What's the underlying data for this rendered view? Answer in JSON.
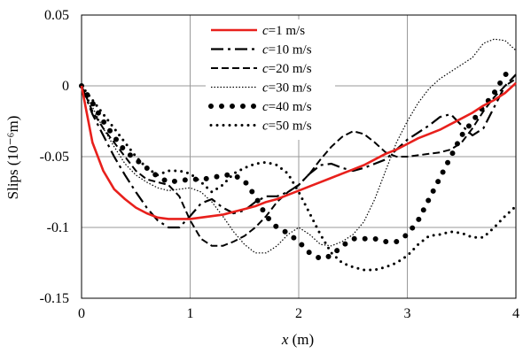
{
  "chart_data": {
    "type": "line",
    "xlabel_var": "x",
    "xlabel_unit": " (m)",
    "ylabel": "Slips (10⁻⁶m)",
    "xlim": [
      0,
      4
    ],
    "ylim": [
      -0.15,
      0.05
    ],
    "xticks": [
      "0",
      "1",
      "2",
      "3",
      "4"
    ],
    "yticks": [
      "0.05",
      "0",
      "-0.05",
      "-0.1",
      "-0.15"
    ],
    "grid": true,
    "legend_position": "top-center",
    "series": [
      {
        "name_var": "c",
        "name_rest": "=1 m/s",
        "color": "#e8201c",
        "style": "solid",
        "x": [
          0,
          0.1,
          0.2,
          0.3,
          0.4,
          0.5,
          0.6,
          0.7,
          0.8,
          0.9,
          1.0,
          1.1,
          1.2,
          1.3,
          1.4,
          1.5,
          1.6,
          1.7,
          1.8,
          1.9,
          2.0,
          2.1,
          2.2,
          2.3,
          2.4,
          2.5,
          2.6,
          2.7,
          2.8,
          2.9,
          3.0,
          3.1,
          3.2,
          3.3,
          3.4,
          3.5,
          3.6,
          3.7,
          3.8,
          3.9,
          4.0
        ],
        "y": [
          0,
          -0.04,
          -0.06,
          -0.073,
          -0.08,
          -0.086,
          -0.09,
          -0.093,
          -0.094,
          -0.094,
          -0.094,
          -0.093,
          -0.092,
          -0.091,
          -0.089,
          -0.087,
          -0.085,
          -0.082,
          -0.08,
          -0.077,
          -0.074,
          -0.071,
          -0.068,
          -0.065,
          -0.062,
          -0.059,
          -0.056,
          -0.052,
          -0.048,
          -0.045,
          -0.041,
          -0.037,
          -0.034,
          -0.031,
          -0.027,
          -0.023,
          -0.019,
          -0.014,
          -0.01,
          -0.005,
          0.002
        ]
      },
      {
        "name_var": "c",
        "name_rest": "=10 m/s",
        "color": "#000000",
        "style": "longdashdot",
        "x": [
          0,
          0.1,
          0.2,
          0.3,
          0.4,
          0.5,
          0.6,
          0.7,
          0.8,
          0.9,
          1.0,
          1.1,
          1.2,
          1.3,
          1.4,
          1.5,
          1.6,
          1.7,
          1.8,
          1.9,
          2.0,
          2.1,
          2.2,
          2.3,
          2.4,
          2.5,
          2.6,
          2.7,
          2.8,
          2.9,
          3.0,
          3.1,
          3.2,
          3.3,
          3.4,
          3.5,
          3.6,
          3.7,
          3.8,
          3.9,
          4.0
        ],
        "y": [
          0,
          -0.02,
          -0.035,
          -0.05,
          -0.063,
          -0.075,
          -0.086,
          -0.095,
          -0.1,
          -0.1,
          -0.092,
          -0.083,
          -0.08,
          -0.086,
          -0.09,
          -0.088,
          -0.082,
          -0.078,
          -0.078,
          -0.075,
          -0.07,
          -0.062,
          -0.056,
          -0.055,
          -0.058,
          -0.06,
          -0.058,
          -0.055,
          -0.052,
          -0.045,
          -0.038,
          -0.033,
          -0.028,
          -0.022,
          -0.02,
          -0.028,
          -0.035,
          -0.03,
          -0.015,
          0.0,
          0.008
        ]
      },
      {
        "name_var": "c",
        "name_rest": "=20 m/s",
        "color": "#000000",
        "style": "dashed",
        "x": [
          0,
          0.1,
          0.2,
          0.3,
          0.4,
          0.5,
          0.6,
          0.7,
          0.8,
          0.9,
          1.0,
          1.1,
          1.2,
          1.3,
          1.4,
          1.5,
          1.6,
          1.7,
          1.8,
          1.9,
          2.0,
          2.1,
          2.2,
          2.3,
          2.4,
          2.5,
          2.6,
          2.7,
          2.8,
          2.9,
          3.0,
          3.1,
          3.2,
          3.3,
          3.4,
          3.5,
          3.6,
          3.7,
          3.8,
          3.9,
          4.0
        ],
        "y": [
          0,
          -0.018,
          -0.03,
          -0.04,
          -0.05,
          -0.06,
          -0.066,
          -0.068,
          -0.07,
          -0.078,
          -0.095,
          -0.108,
          -0.113,
          -0.113,
          -0.11,
          -0.106,
          -0.1,
          -0.092,
          -0.082,
          -0.075,
          -0.07,
          -0.062,
          -0.052,
          -0.043,
          -0.036,
          -0.032,
          -0.034,
          -0.04,
          -0.047,
          -0.05,
          -0.05,
          -0.049,
          -0.048,
          -0.047,
          -0.045,
          -0.04,
          -0.03,
          -0.018,
          -0.008,
          0.0,
          0.005
        ]
      },
      {
        "name_var": "c",
        "name_rest": "=30 m/s",
        "color": "#000000",
        "style": "dotted",
        "x": [
          0,
          0.1,
          0.2,
          0.3,
          0.4,
          0.5,
          0.6,
          0.7,
          0.8,
          0.9,
          1.0,
          1.1,
          1.2,
          1.3,
          1.4,
          1.5,
          1.6,
          1.7,
          1.8,
          1.9,
          2.0,
          2.1,
          2.2,
          2.3,
          2.4,
          2.5,
          2.6,
          2.7,
          2.8,
          2.9,
          3.0,
          3.1,
          3.2,
          3.3,
          3.4,
          3.5,
          3.6,
          3.7,
          3.8,
          3.9,
          4.0
        ],
        "y": [
          0,
          -0.015,
          -0.03,
          -0.043,
          -0.055,
          -0.063,
          -0.068,
          -0.072,
          -0.074,
          -0.073,
          -0.072,
          -0.075,
          -0.082,
          -0.092,
          -0.103,
          -0.112,
          -0.118,
          -0.118,
          -0.113,
          -0.105,
          -0.1,
          -0.105,
          -0.112,
          -0.113,
          -0.11,
          -0.105,
          -0.096,
          -0.08,
          -0.06,
          -0.04,
          -0.025,
          -0.012,
          -0.002,
          0.005,
          0.01,
          0.015,
          0.02,
          0.03,
          0.033,
          0.032,
          0.025
        ]
      },
      {
        "name_var": "c",
        "name_rest": "=40 m/s",
        "color": "#000000",
        "style": "bigdots",
        "x": [
          0,
          0.1,
          0.2,
          0.3,
          0.4,
          0.5,
          0.6,
          0.7,
          0.8,
          0.9,
          1.0,
          1.1,
          1.2,
          1.3,
          1.4,
          1.5,
          1.6,
          1.7,
          1.8,
          1.9,
          2.0,
          2.1,
          2.2,
          2.3,
          2.4,
          2.5,
          2.6,
          2.7,
          2.8,
          2.9,
          3.0,
          3.1,
          3.2,
          3.3,
          3.4,
          3.5,
          3.6,
          3.7,
          3.8,
          3.9,
          4.0
        ],
        "y": [
          0,
          -0.012,
          -0.025,
          -0.036,
          -0.046,
          -0.052,
          -0.058,
          -0.064,
          -0.068,
          -0.067,
          -0.066,
          -0.066,
          -0.065,
          -0.063,
          -0.063,
          -0.067,
          -0.078,
          -0.092,
          -0.1,
          -0.104,
          -0.11,
          -0.118,
          -0.122,
          -0.12,
          -0.113,
          -0.108,
          -0.108,
          -0.108,
          -0.11,
          -0.11,
          -0.105,
          -0.095,
          -0.08,
          -0.065,
          -0.05,
          -0.035,
          -0.025,
          -0.015,
          -0.005,
          0.008,
          0.01
        ]
      },
      {
        "name_var": "c",
        "name_rest": "=50 m/s",
        "color": "#000000",
        "style": "smalldots",
        "x": [
          0,
          0.1,
          0.2,
          0.3,
          0.4,
          0.5,
          0.6,
          0.7,
          0.8,
          0.9,
          1.0,
          1.1,
          1.2,
          1.3,
          1.4,
          1.5,
          1.6,
          1.7,
          1.8,
          1.9,
          2.0,
          2.1,
          2.2,
          2.3,
          2.4,
          2.5,
          2.6,
          2.7,
          2.8,
          2.9,
          3.0,
          3.1,
          3.2,
          3.3,
          3.4,
          3.5,
          3.6,
          3.7,
          3.8,
          3.9,
          4.0
        ],
        "y": [
          0,
          -0.01,
          -0.02,
          -0.03,
          -0.04,
          -0.05,
          -0.058,
          -0.063,
          -0.06,
          -0.06,
          -0.062,
          -0.068,
          -0.075,
          -0.07,
          -0.062,
          -0.058,
          -0.055,
          -0.054,
          -0.056,
          -0.062,
          -0.075,
          -0.09,
          -0.105,
          -0.118,
          -0.125,
          -0.128,
          -0.13,
          -0.13,
          -0.128,
          -0.125,
          -0.12,
          -0.112,
          -0.106,
          -0.105,
          -0.103,
          -0.104,
          -0.107,
          -0.107,
          -0.1,
          -0.092,
          -0.085
        ]
      }
    ]
  }
}
